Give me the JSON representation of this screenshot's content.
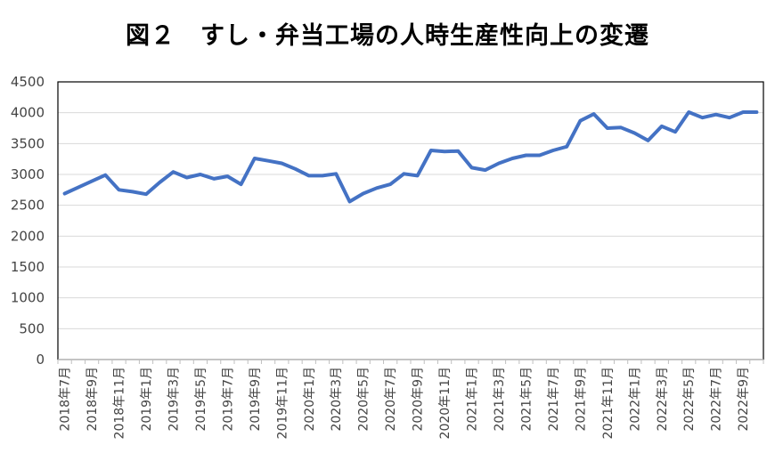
{
  "chart_data": {
    "type": "line",
    "title": "図２　すし・弁当工場の人時生産性向上の変遷",
    "xlabel": "",
    "ylabel": "",
    "ylim": [
      0,
      4500
    ],
    "yticks": [
      0,
      500,
      1000,
      1500,
      2000,
      2500,
      3000,
      3500,
      4000,
      4500
    ],
    "grid": true,
    "legend": "none",
    "line_color": "#4472C4",
    "categories": [
      "2018年7月",
      "2018年8月",
      "2018年9月",
      "2018年10月",
      "2018年11月",
      "2018年12月",
      "2019年1月",
      "2019年2月",
      "2019年3月",
      "2019年4月",
      "2019年5月",
      "2019年6月",
      "2019年7月",
      "2019年8月",
      "2019年9月",
      "2019年10月",
      "2019年11月",
      "2019年12月",
      "2020年1月",
      "2020年2月",
      "2020年3月",
      "2020年4月",
      "2020年5月",
      "2020年6月",
      "2020年7月",
      "2020年8月",
      "2020年9月",
      "2020年10月",
      "2020年11月",
      "2020年12月",
      "2021年1月",
      "2021年2月",
      "2021年3月",
      "2021年4月",
      "2021年5月",
      "2021年6月",
      "2021年7月",
      "2021年8月",
      "2021年9月",
      "2021年10月",
      "2021年11月",
      "2021年12月",
      "2022年1月",
      "2022年2月",
      "2022年3月",
      "2022年4月",
      "2022年5月",
      "2022年6月",
      "2022年7月",
      "2022年8月",
      "2022年9月",
      "2022年10月"
    ],
    "tick_labels": [
      "2018年7月",
      "2018年9月",
      "2018年11月",
      "2019年1月",
      "2019年3月",
      "2019年5月",
      "2019年7月",
      "2019年9月",
      "2019年11月",
      "2020年1月",
      "2020年3月",
      "2020年5月",
      "2020年7月",
      "2020年9月",
      "2020年11月",
      "2021年1月",
      "2021年3月",
      "2021年5月",
      "2021年7月",
      "2021年9月",
      "2021年11月",
      "2022年1月",
      "2022年3月",
      "2022年5月",
      "2022年7月",
      "2022年9月"
    ],
    "values": [
      2690,
      2790,
      2890,
      2990,
      2750,
      2720,
      2680,
      2870,
      3040,
      2950,
      3000,
      2930,
      2970,
      2840,
      3260,
      3220,
      3180,
      3090,
      2980,
      2980,
      3010,
      2560,
      2690,
      2780,
      2840,
      3010,
      2980,
      3390,
      3370,
      3380,
      3110,
      3070,
      3180,
      3260,
      3310,
      3310,
      3390,
      3450,
      3870,
      3980,
      3750,
      3760,
      3670,
      3550,
      3780,
      3690,
      4010,
      3920,
      3970,
      3920,
      4010,
      4010
    ]
  }
}
